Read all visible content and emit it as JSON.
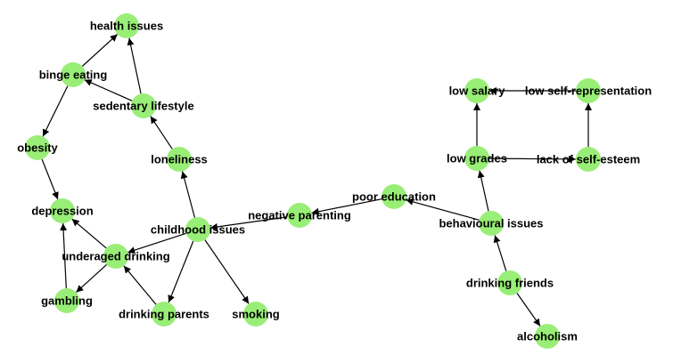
{
  "graph": {
    "colors": {
      "node_fill": "#99ee77",
      "edge": "#000000",
      "label": "#000000",
      "background": "#ffffff"
    },
    "nodes": [
      {
        "id": "health_issues",
        "label": "health issues"
      },
      {
        "id": "binge_eating",
        "label": "binge eating"
      },
      {
        "id": "sedentary_lifestyle",
        "label": "sedentary lifestyle"
      },
      {
        "id": "obesity",
        "label": "obesity"
      },
      {
        "id": "loneliness",
        "label": "loneliness"
      },
      {
        "id": "depression",
        "label": "depression"
      },
      {
        "id": "childhood_issues",
        "label": "childhood issues"
      },
      {
        "id": "negative_parenting",
        "label": "negative parenting"
      },
      {
        "id": "poor_education",
        "label": "poor education"
      },
      {
        "id": "underaged_drinking",
        "label": "underaged drinking"
      },
      {
        "id": "gambling",
        "label": "gambling"
      },
      {
        "id": "drinking_parents",
        "label": "drinking parents"
      },
      {
        "id": "smoking",
        "label": "smoking"
      },
      {
        "id": "low_salary",
        "label": "low salary"
      },
      {
        "id": "low_self_representation",
        "label": "low self-representation"
      },
      {
        "id": "low_grades",
        "label": "low grades"
      },
      {
        "id": "lack_of_self_esteem",
        "label": "lack of self-esteem"
      },
      {
        "id": "behavioural_issues",
        "label": "behavioural issues"
      },
      {
        "id": "drinking_friends",
        "label": "drinking friends"
      },
      {
        "id": "alcoholism",
        "label": "alcoholism"
      }
    ],
    "edges": [
      {
        "from": "binge_eating",
        "to": "health_issues"
      },
      {
        "from": "sedentary_lifestyle",
        "to": "health_issues"
      },
      {
        "from": "sedentary_lifestyle",
        "to": "binge_eating"
      },
      {
        "from": "binge_eating",
        "to": "obesity"
      },
      {
        "from": "obesity",
        "to": "depression"
      },
      {
        "from": "loneliness",
        "to": "sedentary_lifestyle"
      },
      {
        "from": "childhood_issues",
        "to": "loneliness"
      },
      {
        "from": "negative_parenting",
        "to": "childhood_issues"
      },
      {
        "from": "poor_education",
        "to": "negative_parenting"
      },
      {
        "from": "behavioural_issues",
        "to": "poor_education"
      },
      {
        "from": "childhood_issues",
        "to": "underaged_drinking"
      },
      {
        "from": "childhood_issues",
        "to": "drinking_parents"
      },
      {
        "from": "childhood_issues",
        "to": "smoking"
      },
      {
        "from": "underaged_drinking",
        "to": "depression"
      },
      {
        "from": "underaged_drinking",
        "to": "gambling"
      },
      {
        "from": "gambling",
        "to": "depression"
      },
      {
        "from": "drinking_parents",
        "to": "underaged_drinking"
      },
      {
        "from": "behavioural_issues",
        "to": "low_grades"
      },
      {
        "from": "drinking_friends",
        "to": "behavioural_issues"
      },
      {
        "from": "drinking_friends",
        "to": "alcoholism"
      },
      {
        "from": "low_grades",
        "to": "low_salary"
      },
      {
        "from": "low_grades",
        "to": "lack_of_self_esteem"
      },
      {
        "from": "lack_of_self_esteem",
        "to": "low_self_representation"
      },
      {
        "from": "low_self_representation",
        "to": "low_salary"
      }
    ]
  }
}
